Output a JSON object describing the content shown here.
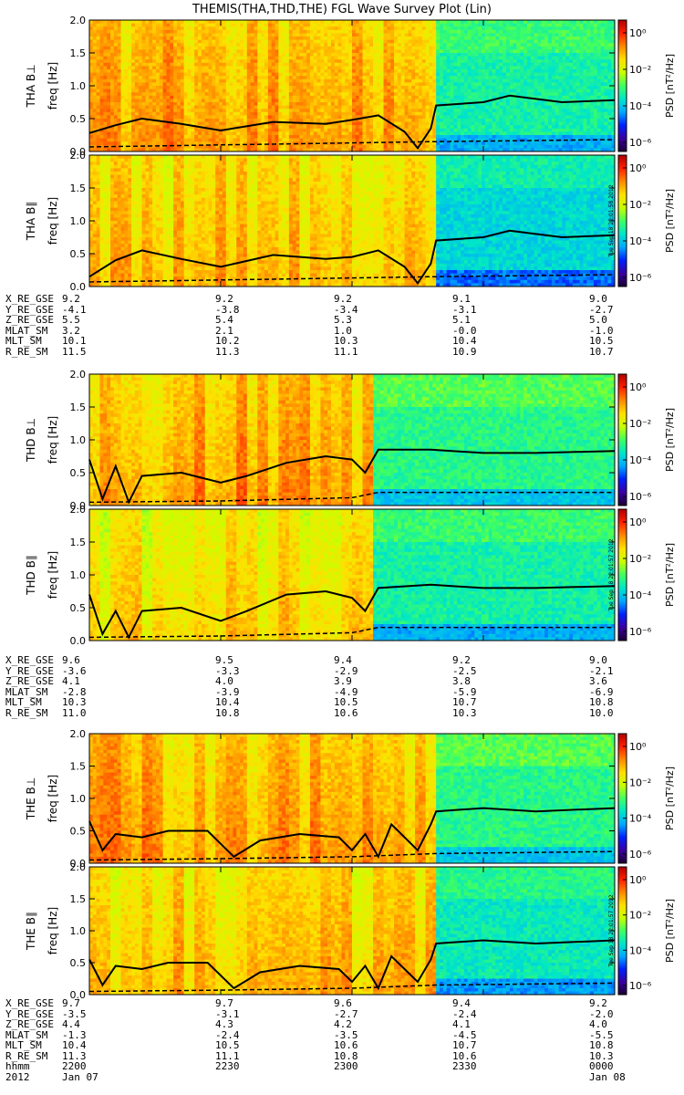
{
  "title": "THEMIS(THA,THD,THE) FGL Wave Survey Plot (Lin)",
  "colors": {
    "colormap": [
      "#1a0030",
      "#3a00a0",
      "#0020ff",
      "#00a8ff",
      "#00e6c8",
      "#40ff60",
      "#c8ff00",
      "#ffe000",
      "#ff8800",
      "#ff2000",
      "#b00000"
    ]
  },
  "colorbar": {
    "label": "PSD [nT²/Hz]",
    "ticks": [
      "10⁰",
      "10⁻²",
      "10⁻⁴",
      "10⁻⁶"
    ]
  },
  "stamps": [
    "Tue Sep 18 22:01:58 2012",
    "Tue Sep 18 22:01:57 2012",
    "Tue Sep 18 22:01:57 2012"
  ],
  "ephem_labels": [
    "X_RE_GSE",
    "Y_RE_GSE",
    "Z_RE_GSE",
    "MLAT_SM",
    "MLT_SM",
    "R_RE_SM"
  ],
  "ephem": [
    {
      "rows": [
        [
          "9.2",
          "9.2",
          "9.2",
          "9.1",
          "9.0"
        ],
        [
          "-4.1",
          "-3.8",
          "-3.4",
          "-3.1",
          "-2.7"
        ],
        [
          "5.5",
          "5.4",
          "5.3",
          "5.1",
          "5.0"
        ],
        [
          "3.2",
          "2.1",
          "1.0",
          "-0.0",
          "-1.0"
        ],
        [
          "10.1",
          "10.2",
          "10.3",
          "10.4",
          "10.5"
        ],
        [
          "11.5",
          "11.3",
          "11.1",
          "10.9",
          "10.7"
        ]
      ]
    },
    {
      "rows": [
        [
          "9.6",
          "9.5",
          "9.4",
          "9.2",
          "9.0"
        ],
        [
          "-3.6",
          "-3.3",
          "-2.9",
          "-2.5",
          "-2.1"
        ],
        [
          "4.1",
          "4.0",
          "3.9",
          "3.8",
          "3.6"
        ],
        [
          "-2.8",
          "-3.9",
          "-4.9",
          "-5.9",
          "-6.9"
        ],
        [
          "10.3",
          "10.4",
          "10.5",
          "10.7",
          "10.8"
        ],
        [
          "11.0",
          "10.8",
          "10.6",
          "10.3",
          "10.0"
        ]
      ]
    },
    {
      "rows": [
        [
          "9.7",
          "9.7",
          "9.6",
          "9.4",
          "9.2"
        ],
        [
          "-3.5",
          "-3.1",
          "-2.7",
          "-2.4",
          "-2.0"
        ],
        [
          "4.4",
          "4.3",
          "4.2",
          "4.1",
          "4.0"
        ],
        [
          "-1.3",
          "-2.4",
          "-3.5",
          "-4.5",
          "-5.5"
        ],
        [
          "10.4",
          "10.5",
          "10.6",
          "10.7",
          "10.8"
        ],
        [
          "11.3",
          "11.1",
          "10.8",
          "10.6",
          "10.3"
        ]
      ]
    }
  ],
  "time_axis": {
    "label": "hhmm",
    "ticks": [
      "2200",
      "2230",
      "2300",
      "2330",
      "0000"
    ],
    "date_left": "Jan 07",
    "date_right": "Jan 08",
    "year": "2012"
  },
  "chart_data": {
    "type": "heatmap",
    "title": "THEMIS(THA,THD,THE) FGL Wave Survey Plot (Lin)",
    "xlabel": "hhmm",
    "ylabel": "freq [Hz]",
    "ylim": [
      0,
      2.0
    ],
    "yticks": [
      "0.0",
      "0.5",
      "1.0",
      "1.5",
      "2.0"
    ],
    "xticks": [
      "2200",
      "2230",
      "2300",
      "2330",
      "0000"
    ],
    "x_hours": [
      22.0,
      22.5,
      23.0,
      23.5,
      24.0
    ],
    "xlim_hours": [
      22.0,
      24.0
    ],
    "color_scale": {
      "log": true,
      "range": [
        1e-07,
        10.0
      ],
      "label": "PSD [nT²/Hz]"
    },
    "panels": [
      {
        "name": "THA B⊥",
        "ylabel": "freq [Hz]",
        "change_hour": 23.32,
        "active_psd": 0.1,
        "quiet_psd": 0.0003,
        "line_solid": [
          [
            22.0,
            0.28
          ],
          [
            22.1,
            0.4
          ],
          [
            22.2,
            0.5
          ],
          [
            22.35,
            0.42
          ],
          [
            22.5,
            0.32
          ],
          [
            22.7,
            0.45
          ],
          [
            22.9,
            0.42
          ],
          [
            23.0,
            0.48
          ],
          [
            23.1,
            0.55
          ],
          [
            23.2,
            0.3
          ],
          [
            23.25,
            0.05
          ],
          [
            23.3,
            0.35
          ],
          [
            23.32,
            0.7
          ],
          [
            23.5,
            0.75
          ],
          [
            23.6,
            0.85
          ],
          [
            23.8,
            0.75
          ],
          [
            24.0,
            0.78
          ]
        ],
        "line_dashed": [
          [
            22.0,
            0.07
          ],
          [
            22.5,
            0.1
          ],
          [
            23.0,
            0.13
          ],
          [
            23.32,
            0.15
          ],
          [
            24.0,
            0.18
          ]
        ]
      },
      {
        "name": "THA B∥",
        "ylabel": "freq [Hz]",
        "change_hour": 23.32,
        "active_psd": 0.05,
        "quiet_psd": 0.0001,
        "line_solid": [
          [
            22.0,
            0.15
          ],
          [
            22.1,
            0.4
          ],
          [
            22.2,
            0.55
          ],
          [
            22.35,
            0.42
          ],
          [
            22.5,
            0.3
          ],
          [
            22.7,
            0.48
          ],
          [
            22.9,
            0.42
          ],
          [
            23.0,
            0.45
          ],
          [
            23.1,
            0.55
          ],
          [
            23.2,
            0.3
          ],
          [
            23.25,
            0.05
          ],
          [
            23.3,
            0.35
          ],
          [
            23.32,
            0.7
          ],
          [
            23.5,
            0.75
          ],
          [
            23.6,
            0.85
          ],
          [
            23.8,
            0.75
          ],
          [
            24.0,
            0.78
          ]
        ],
        "line_dashed": [
          [
            22.0,
            0.07
          ],
          [
            22.5,
            0.1
          ],
          [
            23.0,
            0.13
          ],
          [
            23.32,
            0.15
          ],
          [
            24.0,
            0.18
          ]
        ]
      },
      {
        "name": "THD B⊥",
        "ylabel": "freq [Hz]",
        "change_hour": 23.08,
        "active_psd": 0.1,
        "quiet_psd": 0.0005,
        "line_solid": [
          [
            22.0,
            0.7
          ],
          [
            22.05,
            0.1
          ],
          [
            22.1,
            0.6
          ],
          [
            22.15,
            0.05
          ],
          [
            22.2,
            0.45
          ],
          [
            22.35,
            0.5
          ],
          [
            22.5,
            0.35
          ],
          [
            22.6,
            0.45
          ],
          [
            22.75,
            0.65
          ],
          [
            22.9,
            0.75
          ],
          [
            23.0,
            0.7
          ],
          [
            23.05,
            0.5
          ],
          [
            23.1,
            0.85
          ],
          [
            23.3,
            0.85
          ],
          [
            23.5,
            0.8
          ],
          [
            23.7,
            0.8
          ],
          [
            24.0,
            0.83
          ]
        ],
        "line_dashed": [
          [
            22.0,
            0.05
          ],
          [
            22.5,
            0.07
          ],
          [
            23.0,
            0.12
          ],
          [
            23.1,
            0.2
          ],
          [
            24.0,
            0.2
          ]
        ]
      },
      {
        "name": "THD B∥",
        "ylabel": "freq [Hz]",
        "change_hour": 23.08,
        "active_psd": 0.03,
        "quiet_psd": 0.0003,
        "line_solid": [
          [
            22.0,
            0.7
          ],
          [
            22.05,
            0.1
          ],
          [
            22.1,
            0.45
          ],
          [
            22.15,
            0.05
          ],
          [
            22.2,
            0.45
          ],
          [
            22.35,
            0.5
          ],
          [
            22.5,
            0.3
          ],
          [
            22.6,
            0.45
          ],
          [
            22.75,
            0.7
          ],
          [
            22.9,
            0.75
          ],
          [
            23.0,
            0.65
          ],
          [
            23.05,
            0.45
          ],
          [
            23.1,
            0.8
          ],
          [
            23.3,
            0.85
          ],
          [
            23.5,
            0.8
          ],
          [
            23.7,
            0.8
          ],
          [
            24.0,
            0.83
          ]
        ],
        "line_dashed": [
          [
            22.0,
            0.05
          ],
          [
            22.5,
            0.07
          ],
          [
            23.0,
            0.12
          ],
          [
            23.1,
            0.2
          ],
          [
            24.0,
            0.2
          ]
        ]
      },
      {
        "name": "THE B⊥",
        "ylabel": "freq [Hz]",
        "change_hour": 23.32,
        "active_psd": 0.1,
        "quiet_psd": 0.0005,
        "line_solid": [
          [
            22.0,
            0.65
          ],
          [
            22.05,
            0.2
          ],
          [
            22.1,
            0.45
          ],
          [
            22.2,
            0.4
          ],
          [
            22.3,
            0.5
          ],
          [
            22.45,
            0.5
          ],
          [
            22.55,
            0.1
          ],
          [
            22.65,
            0.35
          ],
          [
            22.8,
            0.45
          ],
          [
            22.95,
            0.4
          ],
          [
            23.0,
            0.2
          ],
          [
            23.05,
            0.45
          ],
          [
            23.1,
            0.1
          ],
          [
            23.15,
            0.6
          ],
          [
            23.25,
            0.2
          ],
          [
            23.3,
            0.6
          ],
          [
            23.32,
            0.8
          ],
          [
            23.5,
            0.85
          ],
          [
            23.7,
            0.8
          ],
          [
            24.0,
            0.85
          ]
        ],
        "line_dashed": [
          [
            22.0,
            0.05
          ],
          [
            22.5,
            0.07
          ],
          [
            23.0,
            0.1
          ],
          [
            23.32,
            0.15
          ],
          [
            24.0,
            0.18
          ]
        ]
      },
      {
        "name": "THE B∥",
        "ylabel": "freq [Hz]",
        "change_hour": 23.32,
        "active_psd": 0.05,
        "quiet_psd": 0.0002,
        "line_solid": [
          [
            22.0,
            0.55
          ],
          [
            22.05,
            0.15
          ],
          [
            22.1,
            0.45
          ],
          [
            22.2,
            0.4
          ],
          [
            22.3,
            0.5
          ],
          [
            22.45,
            0.5
          ],
          [
            22.55,
            0.1
          ],
          [
            22.65,
            0.35
          ],
          [
            22.8,
            0.45
          ],
          [
            22.95,
            0.4
          ],
          [
            23.0,
            0.2
          ],
          [
            23.05,
            0.45
          ],
          [
            23.1,
            0.1
          ],
          [
            23.15,
            0.6
          ],
          [
            23.25,
            0.2
          ],
          [
            23.3,
            0.55
          ],
          [
            23.32,
            0.8
          ],
          [
            23.5,
            0.85
          ],
          [
            23.7,
            0.8
          ],
          [
            24.0,
            0.85
          ]
        ],
        "line_dashed": [
          [
            22.0,
            0.05
          ],
          [
            22.5,
            0.07
          ],
          [
            23.0,
            0.1
          ],
          [
            23.32,
            0.15
          ],
          [
            24.0,
            0.18
          ]
        ]
      }
    ]
  }
}
